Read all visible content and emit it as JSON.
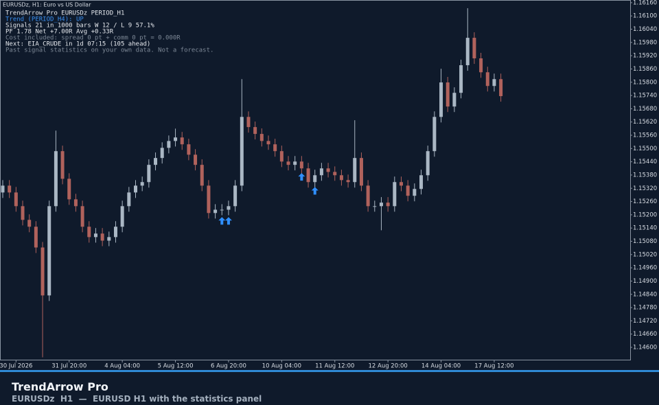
{
  "chart_data": {
    "type": "candlestick",
    "title": "EURUSDz, H1:  Euro vs US Dollar",
    "categories": [
      null,
      null,
      "30 Jul 2026",
      null,
      null,
      null,
      null,
      null,
      null,
      null,
      "31 Jul 20:00",
      null,
      null,
      null,
      null,
      null,
      null,
      null,
      "4 Aug 04:00",
      null,
      null,
      null,
      null,
      null,
      null,
      null,
      "5 Aug 12:00",
      null,
      null,
      null,
      null,
      null,
      null,
      null,
      "6 Aug 20:00",
      null,
      null,
      null,
      null,
      null,
      null,
      null,
      "10 Aug 04:00",
      null,
      null,
      null,
      null,
      null,
      null,
      null,
      "11 Aug 12:00",
      null,
      null,
      null,
      null,
      null,
      null,
      null,
      "12 Aug 20:00",
      null,
      null,
      null,
      null,
      null,
      null,
      null,
      "14 Aug 04:00",
      null,
      null,
      null,
      null,
      null,
      null,
      null,
      "17 Aug 12:00",
      null
    ],
    "open": [
      1.15301,
      1.15332,
      1.15301,
      1.15239,
      1.15177,
      1.15146,
      1.15052,
      1.14835,
      1.15239,
      1.15488,
      1.15363,
      1.1527,
      1.15239,
      1.15146,
      1.15099,
      1.15115,
      1.15083,
      1.15099,
      1.15146,
      1.15239,
      1.15301,
      1.15332,
      1.15348,
      1.15426,
      1.15457,
      1.15503,
      1.15534,
      1.1555,
      1.15519,
      1.15472,
      1.15426,
      1.15332,
      1.15208,
      1.15223,
      1.15223,
      1.15239,
      1.15332,
      1.15643,
      1.15597,
      1.15566,
      1.15534,
      1.15519,
      1.15488,
      1.15441,
      1.15426,
      1.15441,
      1.1541,
      1.15348,
      1.15379,
      1.1541,
      1.15394,
      1.15379,
      1.15357,
      1.15348,
      1.15457,
      1.15332,
      1.15239,
      1.15239,
      1.15255,
      1.15239,
      1.15348,
      1.15332,
      1.15286,
      1.15317,
      1.15379,
      1.15488,
      1.15643,
      1.15799,
      1.1569,
      1.15752,
      1.15877,
      1.16001,
      1.15908,
      1.15845,
      1.15783,
      1.15814
    ],
    "high": [
      1.15357,
      1.15357,
      1.15326,
      1.15264,
      1.15202,
      1.15171,
      1.15077,
      1.15264,
      1.15581,
      1.15513,
      1.15388,
      1.15295,
      1.15264,
      1.15171,
      1.1514,
      1.1514,
      1.15124,
      1.15171,
      1.15264,
      1.15326,
      1.15357,
      1.15373,
      1.15451,
      1.15482,
      1.15528,
      1.15559,
      1.1559,
      1.15575,
      1.15544,
      1.15497,
      1.15451,
      1.15357,
      1.15248,
      1.15248,
      1.15264,
      1.15357,
      1.15814,
      1.15668,
      1.15622,
      1.15591,
      1.15559,
      1.15544,
      1.15513,
      1.15466,
      1.15466,
      1.15466,
      1.15435,
      1.15404,
      1.15435,
      1.15435,
      1.15419,
      1.15404,
      1.15382,
      1.15628,
      1.15482,
      1.15357,
      1.15264,
      1.1528,
      1.1528,
      1.15373,
      1.15373,
      1.15357,
      1.15342,
      1.15404,
      1.15513,
      1.15668,
      1.15861,
      1.15824,
      1.15777,
      1.15902,
      1.16135,
      1.16026,
      1.15933,
      1.1587,
      1.15839,
      1.15839
    ],
    "low": [
      1.15276,
      1.15276,
      1.15214,
      1.15152,
      1.15121,
      1.15027,
      1.14555,
      1.1481,
      1.15214,
      1.15338,
      1.15245,
      1.15214,
      1.15121,
      1.15074,
      1.15074,
      1.15058,
      1.15058,
      1.15074,
      1.15121,
      1.15214,
      1.15276,
      1.15307,
      1.15323,
      1.15401,
      1.15432,
      1.15478,
      1.15509,
      1.15494,
      1.15447,
      1.15401,
      1.15307,
      1.15183,
      1.15183,
      1.15198,
      1.15198,
      1.15214,
      1.15307,
      1.15572,
      1.15541,
      1.15509,
      1.15494,
      1.15463,
      1.15416,
      1.15401,
      1.15401,
      1.15385,
      1.15323,
      1.15323,
      1.15354,
      1.15369,
      1.15354,
      1.15332,
      1.15323,
      1.15323,
      1.15307,
      1.15214,
      1.15214,
      1.1513,
      1.15214,
      1.15214,
      1.15307,
      1.15261,
      1.15261,
      1.15292,
      1.15354,
      1.15463,
      1.15618,
      1.15665,
      1.15665,
      1.15727,
      1.15852,
      1.15883,
      1.1582,
      1.15758,
      1.15758,
      1.15712
    ],
    "close": [
      1.15332,
      1.15301,
      1.15239,
      1.15177,
      1.15146,
      1.15052,
      1.14835,
      1.15239,
      1.15488,
      1.15363,
      1.1527,
      1.15239,
      1.15146,
      1.15099,
      1.15115,
      1.15083,
      1.15099,
      1.15146,
      1.15239,
      1.15301,
      1.15332,
      1.15348,
      1.15426,
      1.15457,
      1.15503,
      1.15534,
      1.1555,
      1.15519,
      1.15472,
      1.15426,
      1.15332,
      1.15208,
      1.15223,
      1.15223,
      1.15239,
      1.15332,
      1.15643,
      1.15597,
      1.15566,
      1.15534,
      1.15519,
      1.15488,
      1.15441,
      1.15426,
      1.15441,
      1.1541,
      1.15348,
      1.15379,
      1.1541,
      1.15394,
      1.15379,
      1.15357,
      1.15348,
      1.15457,
      1.15332,
      1.15239,
      1.15239,
      1.15255,
      1.15239,
      1.15348,
      1.15332,
      1.15286,
      1.15317,
      1.15379,
      1.15488,
      1.15643,
      1.15799,
      1.1569,
      1.15752,
      1.15877,
      1.16001,
      1.15908,
      1.15845,
      1.15783,
      1.15814,
      1.15737
    ],
    "up_color": "#aab7c4",
    "down_color": "#b0625c",
    "signals": {
      "color": "#2f8fff",
      "values": [
        null,
        null,
        null,
        null,
        null,
        null,
        null,
        null,
        null,
        null,
        null,
        null,
        null,
        null,
        null,
        null,
        null,
        null,
        null,
        null,
        null,
        null,
        null,
        null,
        null,
        null,
        null,
        null,
        null,
        null,
        null,
        null,
        null,
        1.15171,
        1.15171,
        null,
        null,
        null,
        null,
        null,
        null,
        null,
        null,
        null,
        null,
        1.1537,
        null,
        1.15307,
        null,
        null,
        null,
        null,
        null,
        null,
        null,
        null,
        null,
        null,
        null,
        null,
        null,
        null,
        null,
        null,
        null,
        null,
        null,
        null,
        null,
        null,
        null,
        null,
        null,
        null,
        null,
        null
      ]
    },
    "ylim": [
      1.14541,
      1.16169
    ],
    "yticks": [
      {
        "value": 1.1616,
        "label": "1.16160"
      },
      {
        "value": 1.161,
        "label": "1.16100"
      },
      {
        "value": 1.1604,
        "label": "1.16040"
      },
      {
        "value": 1.1598,
        "label": "1.15980"
      },
      {
        "value": 1.1592,
        "label": "1.15920"
      },
      {
        "value": 1.1586,
        "label": "1.15860"
      },
      {
        "value": 1.158,
        "label": "1.15800"
      },
      {
        "value": 1.1574,
        "label": "1.15740"
      },
      {
        "value": 1.1568,
        "label": "1.15680"
      },
      {
        "value": 1.1562,
        "label": "1.15620"
      },
      {
        "value": 1.1556,
        "label": "1.15560"
      },
      {
        "value": 1.155,
        "label": "1.15500"
      },
      {
        "value": 1.1544,
        "label": "1.15440"
      },
      {
        "value": 1.1538,
        "label": "1.15380"
      },
      {
        "value": 1.1532,
        "label": "1.15320"
      },
      {
        "value": 1.1526,
        "label": "1.15260"
      },
      {
        "value": 1.152,
        "label": "1.15200"
      },
      {
        "value": 1.1514,
        "label": "1.15140"
      },
      {
        "value": 1.1508,
        "label": "1.15080"
      },
      {
        "value": 1.1502,
        "label": "1.15020"
      },
      {
        "value": 1.1496,
        "label": "1.14960"
      },
      {
        "value": 1.149,
        "label": "1.14900"
      },
      {
        "value": 1.1484,
        "label": "1.14840"
      },
      {
        "value": 1.1478,
        "label": "1.14780"
      },
      {
        "value": 1.1472,
        "label": "1.14720"
      },
      {
        "value": 1.1466,
        "label": "1.14660"
      },
      {
        "value": 1.146,
        "label": "1.14600"
      }
    ],
    "grid": false
  },
  "panel": {
    "lines": [
      "TrendArrow Pro  EURUSDz PERIOD_H1",
      "Trend (PERIOD_H4): UP",
      "Signals 21 in 1000 bars   W 12 / L 9   57.1%",
      "PF 1.78   Net +7.00R   Avg +0.33R",
      "Cost included: spread 0 pt + comm 0 pt = 0.000R",
      "Next: EIA_CRUDE in 1d 07:15   (105 ahead)",
      "Past signal statistics on your own data. Not a forecast."
    ]
  },
  "footer": {
    "title": "TrendArrow Pro",
    "subtitle": "EURUSDz  H1  —  EURUSD H1 with the statistics panel"
  }
}
